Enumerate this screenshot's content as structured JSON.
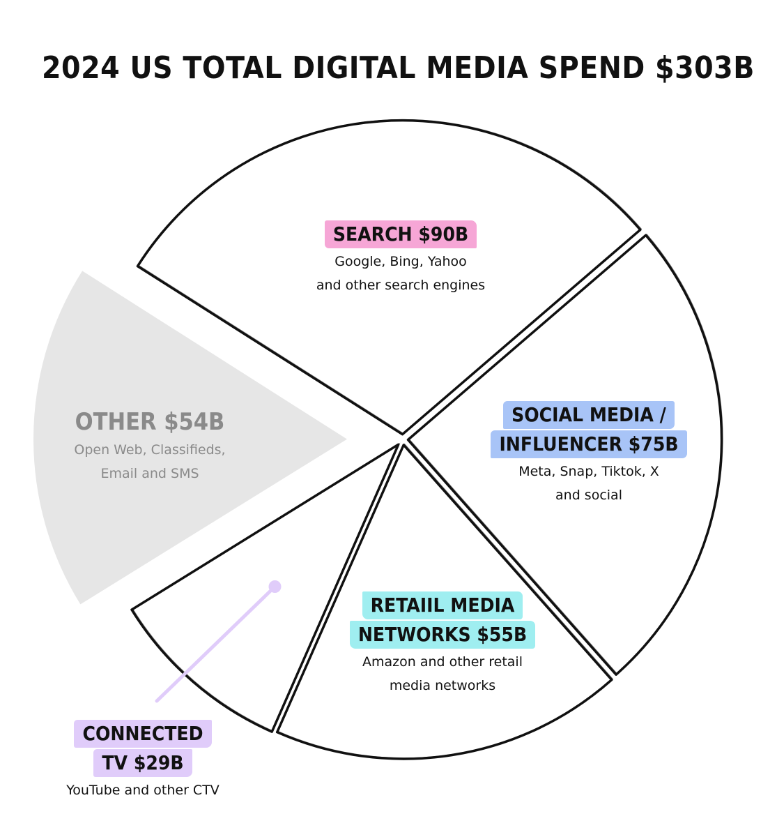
{
  "chart_data": {
    "type": "pie",
    "title": "2024 US TOTAL DIGITAL MEDIA SPEND $303B",
    "unit": "$B",
    "total": 303,
    "slices": [
      {
        "key": "search",
        "label_lines": [
          "SEARCH $90B"
        ],
        "value": 90,
        "description_lines": [
          "Google, Bing, Yahoo",
          "and other search engines"
        ],
        "highlight_color": "#f6a6d6",
        "exploded": false
      },
      {
        "key": "social",
        "label_lines": [
          "SOCIAL MEDIA /",
          "INFLUENCER $75B"
        ],
        "value": 75,
        "description_lines": [
          "Meta, Snap, Tiktok, X",
          "and social"
        ],
        "highlight_color": "#a8c4f7",
        "exploded": false
      },
      {
        "key": "retail",
        "label_lines": [
          "RETAIIL MEDIA",
          "NETWORKS $55B"
        ],
        "value": 55,
        "description_lines": [
          "Amazon and other retail",
          "media networks"
        ],
        "highlight_color": "#9feef0",
        "exploded": false
      },
      {
        "key": "ctv",
        "label_lines": [
          "CONNECTED",
          "TV $29B"
        ],
        "value": 29,
        "description_lines": [
          "YouTube and other CTV"
        ],
        "highlight_color": "#e0ccfa",
        "exploded": false
      },
      {
        "key": "other",
        "label_lines": [
          "OTHER $54B"
        ],
        "value": 54,
        "description_lines": [
          "Open Web, Classifieds,",
          "Email and SMS"
        ],
        "highlight_color": "#e6e6e6",
        "exploded": true
      }
    ]
  },
  "colors": {
    "outline": "#111111",
    "slice_fill": "#ffffff",
    "other_fill": "#e6e6e6",
    "other_text": "#8a8a8a",
    "ctv_pointer": "#e0ccfa"
  }
}
